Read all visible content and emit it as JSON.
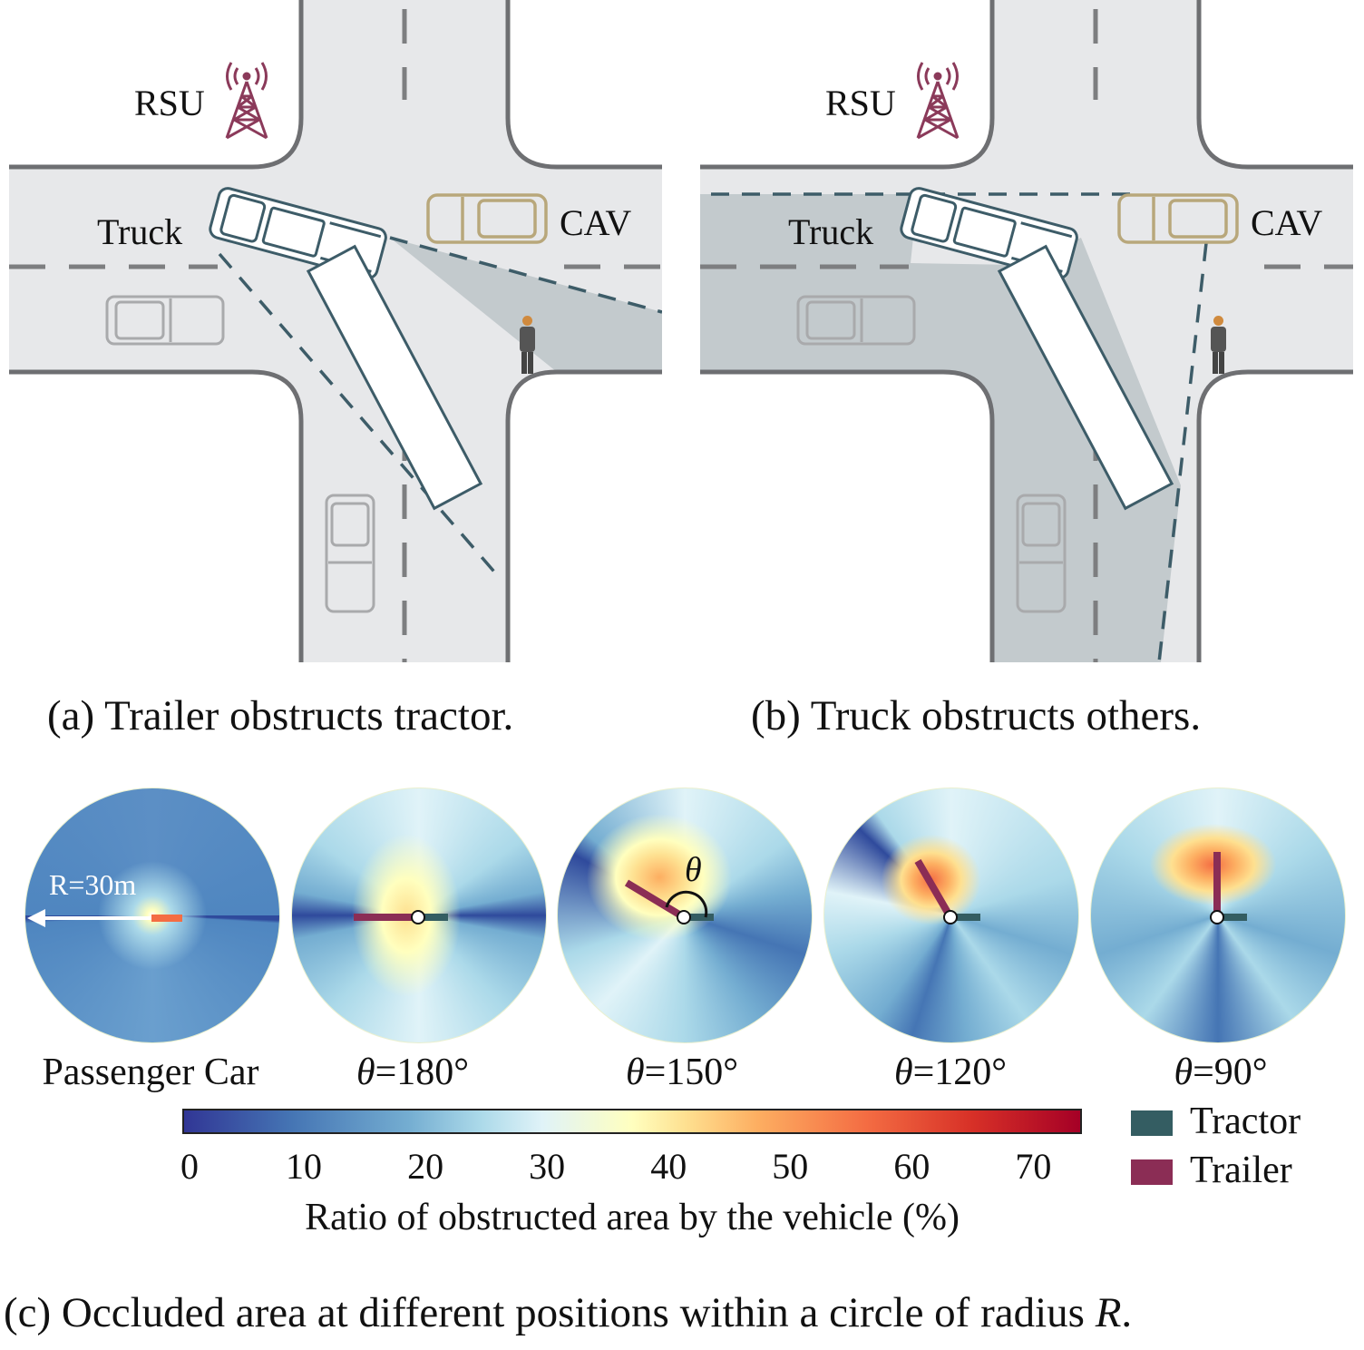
{
  "panel_a": {
    "rsu_label": "RSU",
    "truck_label": "Truck",
    "cav_label": "CAV",
    "caption": "(a) Trailer obstructs tractor."
  },
  "panel_b": {
    "rsu_label": "RSU",
    "truck_label": "Truck",
    "cav_label": "CAV",
    "caption": "(b) Truck obstructs others."
  },
  "panel_c": {
    "radius_label": "R=30m",
    "theta_symbol": "θ",
    "circles": [
      {
        "label": "Passenger Car",
        "theta_deg": null
      },
      {
        "label": "=180°",
        "theta_deg": 180
      },
      {
        "label": "=150°",
        "theta_deg": 150
      },
      {
        "label": "=120°",
        "theta_deg": 120
      },
      {
        "label": "=90°",
        "theta_deg": 90
      }
    ],
    "colorbar": {
      "ticks": [
        "0",
        "10",
        "20",
        "30",
        "40",
        "50",
        "60",
        "70"
      ],
      "min": 0,
      "max": 74,
      "label": "Ratio of obstructed area by the vehicle (%)"
    },
    "legend": [
      {
        "name": "Tractor",
        "color": "#345d62"
      },
      {
        "name": "Trailer",
        "color": "#8b2d55"
      }
    ],
    "caption_prefix": "(c) Occluded area at different positions within a circle of radius ",
    "caption_var": "R",
    "caption_suffix": "."
  },
  "colors": {
    "road": "#e7e8ea",
    "curb": "#6e6f72",
    "lane_dash": "#7d7e80",
    "shadow": "#c3cacd",
    "truck": "#3d5c68",
    "cav": "#b8a77b",
    "rsu": "#8b3a5a",
    "other_car": "#a9aaac"
  }
}
